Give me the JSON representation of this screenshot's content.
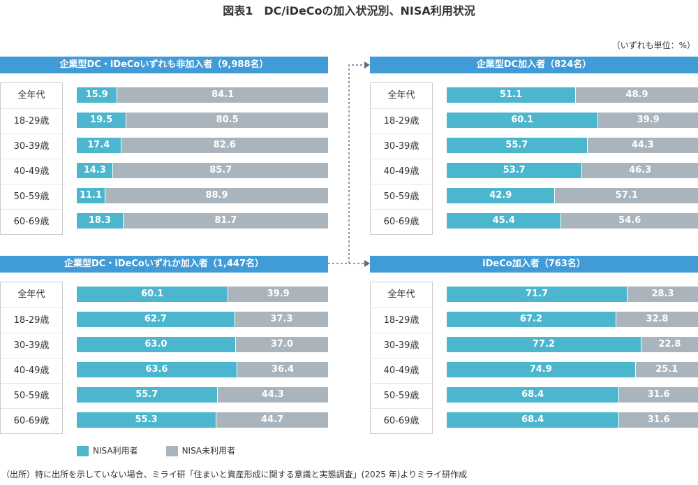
{
  "title": "図表1　DC/iDeCoの加入状況別、NISA利用状況",
  "unit_note": "（いずれも単位：%）",
  "source": "（出所）特に出所を示していない場合、ミライ研「住まいと資産形成に関する意識と実態調査」(2025 年)よりミライ研作成",
  "colors": {
    "header": "#419bd6",
    "nisa_user": "#4bb6cd",
    "nisa_nonuser": "#a9b4bc"
  },
  "chart_data": [
    {
      "type": "bar",
      "stacked": true,
      "orientation": "horizontal",
      "title": "企業型DC・iDeCoいずれも非加入者（9,988名）",
      "categories": [
        "全年代",
        "18-29歳",
        "30-39歳",
        "40-49歳",
        "50-59歳",
        "60-69歳"
      ],
      "series": [
        {
          "name": "NISA利用者",
          "values": [
            "15.9",
            "19.5",
            "17.4",
            "14.3",
            "11.1",
            "18.3"
          ]
        },
        {
          "name": "NISA未利用者",
          "values": [
            "84.1",
            "80.5",
            "82.6",
            "85.7",
            "88.9",
            "81.7"
          ]
        }
      ]
    },
    {
      "type": "bar",
      "stacked": true,
      "orientation": "horizontal",
      "title": "企業型DC加入者（824名）",
      "categories": [
        "全年代",
        "18-29歳",
        "30-39歳",
        "40-49歳",
        "50-59歳",
        "60-69歳"
      ],
      "series": [
        {
          "name": "NISA利用者",
          "values": [
            "51.1",
            "60.1",
            "55.7",
            "53.7",
            "42.9",
            "45.4"
          ]
        },
        {
          "name": "NISA未利用者",
          "values": [
            "48.9",
            "39.9",
            "44.3",
            "46.3",
            "57.1",
            "54.6"
          ]
        }
      ]
    },
    {
      "type": "bar",
      "stacked": true,
      "orientation": "horizontal",
      "title": "企業型DC・iDeCoいずれか加入者（1,447名）",
      "categories": [
        "全年代",
        "18-29歳",
        "30-39歳",
        "40-49歳",
        "50-59歳",
        "60-69歳"
      ],
      "series": [
        {
          "name": "NISA利用者",
          "values": [
            "60.1",
            "62.7",
            "63.0",
            "63.6",
            "55.7",
            "55.3"
          ]
        },
        {
          "name": "NISA未利用者",
          "values": [
            "39.9",
            "37.3",
            "37.0",
            "36.4",
            "44.3",
            "44.7"
          ]
        }
      ]
    },
    {
      "type": "bar",
      "stacked": true,
      "orientation": "horizontal",
      "title": "iDeCo加入者（763名）",
      "categories": [
        "全年代",
        "18-29歳",
        "30-39歳",
        "40-49歳",
        "50-59歳",
        "60-69歳"
      ],
      "series": [
        {
          "name": "NISA利用者",
          "values": [
            "71.7",
            "67.2",
            "77.2",
            "74.9",
            "68.4",
            "68.4"
          ]
        },
        {
          "name": "NISA未利用者",
          "values": [
            "28.3",
            "32.8",
            "22.8",
            "25.1",
            "31.6",
            "31.6"
          ]
        }
      ]
    }
  ],
  "legend": [
    "NISA利用者",
    "NISA未利用者"
  ]
}
